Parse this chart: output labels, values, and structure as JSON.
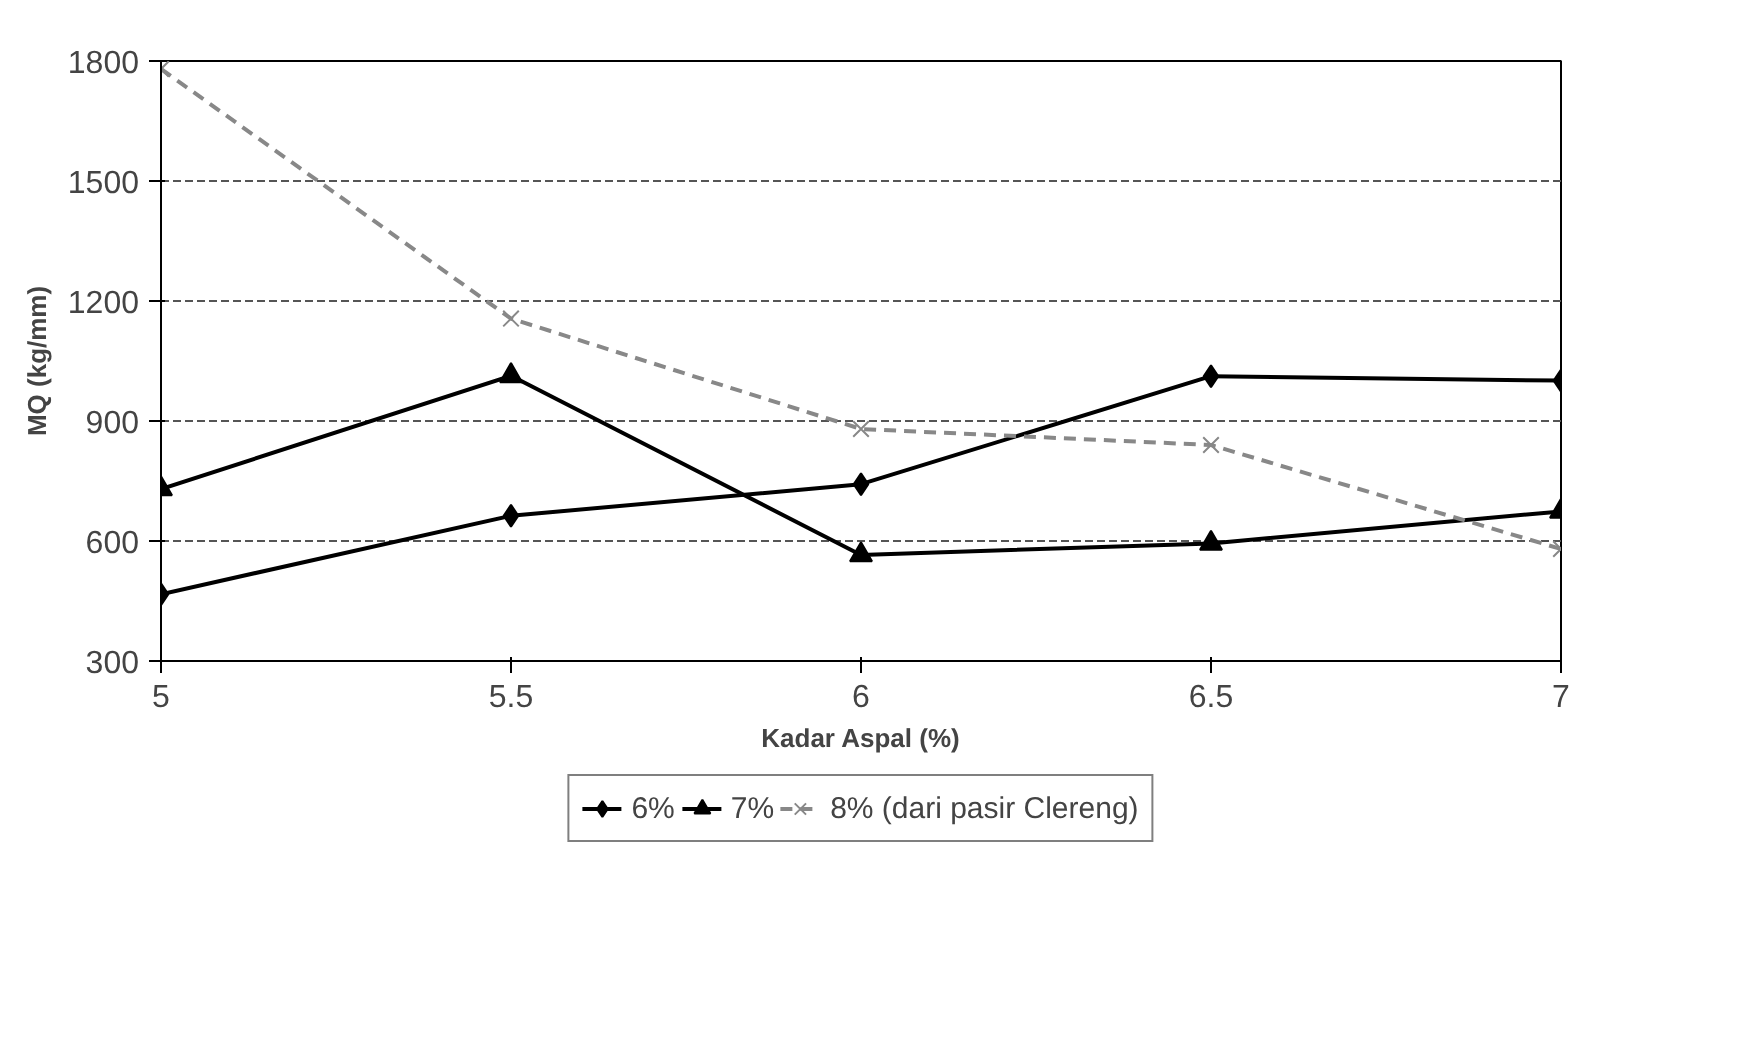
{
  "chart_data": {
    "type": "line",
    "xlabel": "Kadar Aspal (%)",
    "ylabel": "MQ (kg/mm)",
    "x": [
      5,
      5.5,
      6,
      6.5,
      7
    ],
    "xlim": [
      5,
      7
    ],
    "xticks": [
      5,
      5.5,
      6,
      6.5,
      7
    ],
    "ylim": [
      300,
      1800
    ],
    "yticks": [
      300,
      600,
      900,
      1200,
      1500,
      1800
    ],
    "grid": "y",
    "legend": "bottom",
    "series": [
      {
        "name": "6%",
        "color": "#000000",
        "values": [
          467,
          663,
          742,
          1012,
          1001
        ],
        "marker": "diamond",
        "line_style": "solid"
      },
      {
        "name": "7%",
        "color": "#000000",
        "values": [
          730,
          1013,
          565,
          594,
          674
        ],
        "marker": "triangle",
        "line_style": "solid"
      },
      {
        "name": "8% (dari pasir Clereng)",
        "color": "#888888",
        "values": [
          1780,
          1156,
          880,
          840,
          580
        ],
        "marker": "cross",
        "line_style": "dashed"
      }
    ]
  }
}
